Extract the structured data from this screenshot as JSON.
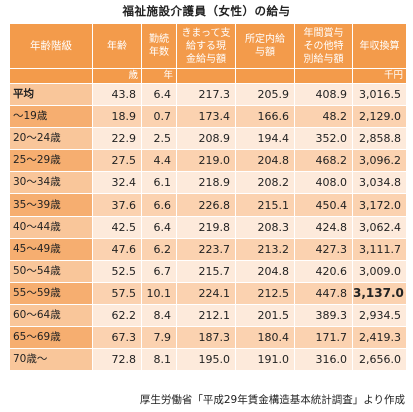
{
  "title": "福祉施設介護員（女性）の給与",
  "headers": {
    "corner": "年齢階級",
    "age": "年齢",
    "tenure": [
      "勤続",
      "年数"
    ],
    "scheduled": [
      "きまって支",
      "給する現",
      "金給与額"
    ],
    "regular": [
      "所定内給",
      "与額"
    ],
    "bonus": [
      "年間賞与",
      "その他特",
      "別給与額"
    ],
    "annual": "年収換算"
  },
  "units": {
    "age": "歳",
    "tenure": "年",
    "annual": "千円"
  },
  "rows": [
    {
      "label": "平均",
      "age": "43.8",
      "tenure": "6.4",
      "scheduled": "217.3",
      "regular": "205.9",
      "bonus": "408.9",
      "annual": "3,016.5"
    },
    {
      "label": "～19歳",
      "age": "18.9",
      "tenure": "0.7",
      "scheduled": "173.4",
      "regular": "166.6",
      "bonus": "48.2",
      "annual": "2,129.0"
    },
    {
      "label": "20～24歳",
      "age": "22.9",
      "tenure": "2.5",
      "scheduled": "208.9",
      "regular": "194.4",
      "bonus": "352.0",
      "annual": "2,858.8"
    },
    {
      "label": "25～29歳",
      "age": "27.5",
      "tenure": "4.4",
      "scheduled": "219.0",
      "regular": "204.8",
      "bonus": "468.2",
      "annual": "3,096.2"
    },
    {
      "label": "30～34歳",
      "age": "32.4",
      "tenure": "6.1",
      "scheduled": "218.9",
      "regular": "208.2",
      "bonus": "408.0",
      "annual": "3,034.8"
    },
    {
      "label": "35～39歳",
      "age": "37.6",
      "tenure": "6.6",
      "scheduled": "226.8",
      "regular": "215.1",
      "bonus": "450.4",
      "annual": "3,172.0"
    },
    {
      "label": "40～44歳",
      "age": "42.5",
      "tenure": "6.4",
      "scheduled": "219.8",
      "regular": "208.3",
      "bonus": "424.8",
      "annual": "3,062.4"
    },
    {
      "label": "45～49歳",
      "age": "47.6",
      "tenure": "6.2",
      "scheduled": "223.7",
      "regular": "213.2",
      "bonus": "427.3",
      "annual": "3,111.7"
    },
    {
      "label": "50～54歳",
      "age": "52.5",
      "tenure": "6.7",
      "scheduled": "215.7",
      "regular": "204.8",
      "bonus": "420.6",
      "annual": "3,009.0"
    },
    {
      "label": "55～59歳",
      "age": "57.5",
      "tenure": "10.1",
      "scheduled": "224.1",
      "regular": "212.5",
      "bonus": "447.8",
      "annual": "3,137.0"
    },
    {
      "label": "60～64歳",
      "age": "62.2",
      "tenure": "8.4",
      "scheduled": "212.1",
      "regular": "201.5",
      "bonus": "389.3",
      "annual": "2,934.5"
    },
    {
      "label": "65～69歳",
      "age": "67.3",
      "tenure": "7.9",
      "scheduled": "187.3",
      "regular": "180.4",
      "bonus": "171.7",
      "annual": "2,419.3"
    },
    {
      "label": "70歳～",
      "age": "72.8",
      "tenure": "8.1",
      "scheduled": "195.0",
      "regular": "191.0",
      "bonus": "316.0",
      "annual": "2,656.0"
    }
  ],
  "highlight_row_index": 9,
  "source": "厚生労働省「平成29年賃金構造基本統計調査」より作成",
  "colors": {
    "header": "#f39b4b",
    "label_light": "#f9c69a",
    "label_dark": "#f6ae70",
    "row_light": "#fdeadb",
    "row_dark": "#fbd2b0"
  }
}
